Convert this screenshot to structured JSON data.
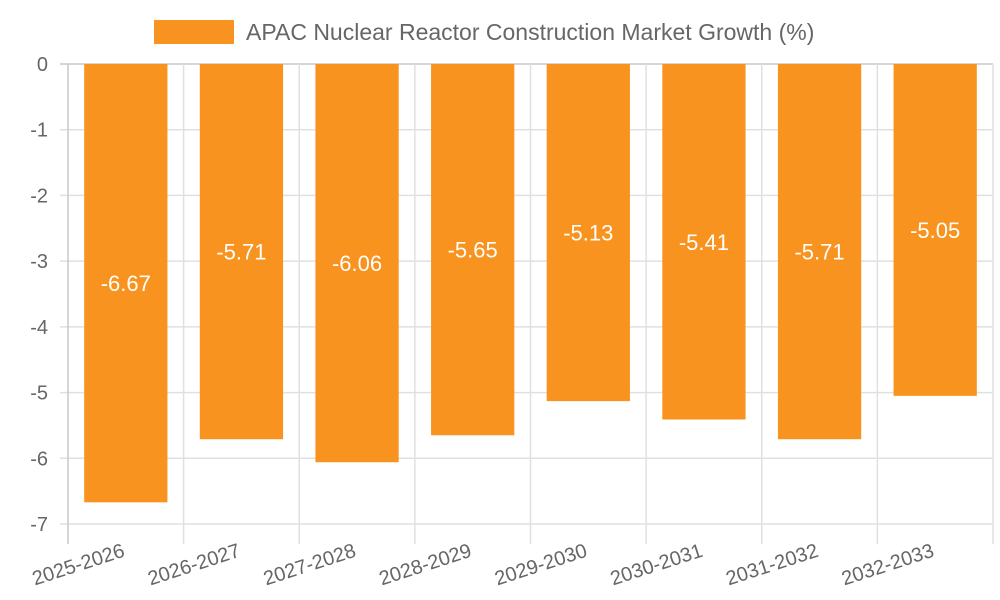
{
  "chart_data": {
    "type": "bar",
    "title": "",
    "legend": {
      "position": "top",
      "label": "APAC Nuclear Reactor Construction Market Growth (%)",
      "color": "#f7931e"
    },
    "categories": [
      "2025-2026",
      "2026-2027",
      "2027-2028",
      "2028-2029",
      "2029-2030",
      "2030-2031",
      "2031-2032",
      "2032-2033"
    ],
    "series": [
      {
        "name": "APAC Nuclear Reactor Construction Market Growth (%)",
        "values": [
          -6.67,
          -5.71,
          -6.06,
          -5.65,
          -5.13,
          -5.41,
          -5.71,
          -5.05
        ],
        "labels": [
          "-6.67",
          "-5.71",
          "-6.06",
          "-5.65",
          "-5.13",
          "-5.41",
          "-5.71",
          "-5.05"
        ]
      }
    ],
    "y_ticks": [
      "0",
      "-1",
      "-2",
      "-3",
      "-4",
      "-5",
      "-6",
      "-7"
    ],
    "ylim": [
      -7,
      0
    ],
    "grid": true,
    "xlabel": "",
    "ylabel": ""
  },
  "colors": {
    "bar": "#f7931e",
    "grid": "#e0e0e0",
    "axis": "#c8c8c8",
    "text": "#666666",
    "data_label": "#ffffff"
  }
}
